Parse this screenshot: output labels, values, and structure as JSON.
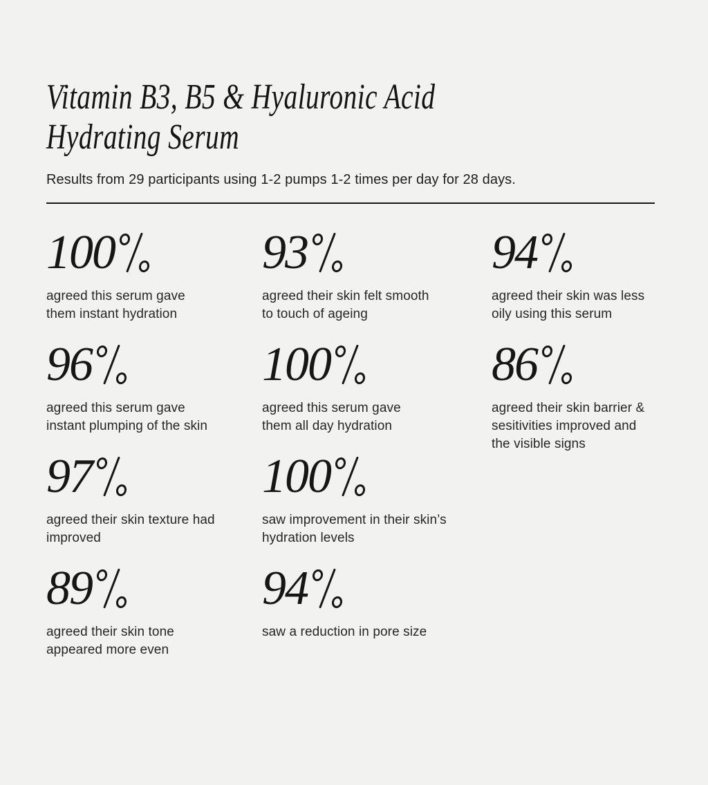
{
  "page": {
    "background_color": "#f2f2f1",
    "text_color": "#161616",
    "divider_color": "#161616"
  },
  "header": {
    "title": "Vitamin B3, B5 & Hyaluronic Acid\nHydrating Serum",
    "subtitle": "Results from 29 participants using 1-2 pumps 1-2 times per day for 28 days."
  },
  "stats": [
    {
      "value": "100",
      "unit": "%",
      "description": "agreed this serum gave\nthem instant hydration"
    },
    {
      "value": "93",
      "unit": "%",
      "description": "agreed their skin felt smooth\nto touch of ageing"
    },
    {
      "value": "94",
      "unit": "%",
      "description": "agreed their skin was less\noily using this serum"
    },
    {
      "value": "96",
      "unit": "%",
      "description": "agreed this serum gave\ninstant plumping of the skin"
    },
    {
      "value": "100",
      "unit": "%",
      "description": "agreed this serum gave\nthem all day hydration"
    },
    {
      "value": "86",
      "unit": "%",
      "description": "agreed their skin barrier &\nsesitivities improved and\nthe visible signs"
    },
    {
      "value": "97",
      "unit": "%",
      "description": "agreed their skin texture had\nimproved"
    },
    {
      "value": "100",
      "unit": "%",
      "description": "saw improvement in their skin’s\nhydration levels"
    },
    {
      "value": "89",
      "unit": "%",
      "description": "agreed their skin tone\nappeared more even"
    },
    {
      "value": "94",
      "unit": "%",
      "description": "saw a reduction in pore size"
    }
  ]
}
